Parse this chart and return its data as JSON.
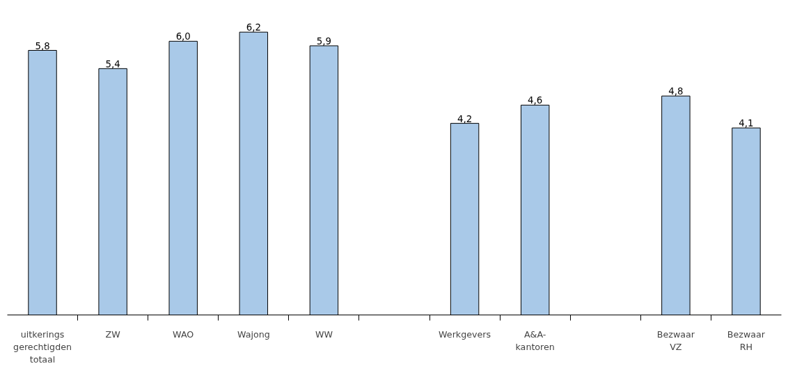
{
  "chart_data": {
    "type": "bar",
    "categories": [
      "uitkerings\ngerechtigden\ntotaal",
      "ZW",
      "WAO",
      "Wajong",
      "WW",
      null,
      "Werkgevers",
      "A&A-\nkantoren",
      null,
      "Bezwaar\nVZ",
      "Bezwaar\nRH"
    ],
    "values": [
      5.8,
      5.4,
      6.0,
      6.2,
      5.9,
      null,
      4.2,
      4.6,
      null,
      4.8,
      4.1
    ],
    "value_labels": [
      "5,8",
      "5,4",
      "6,0",
      "6,2",
      "5,9",
      null,
      "4,2",
      "4,6",
      null,
      "4,8",
      "4,1"
    ],
    "color": "#a9c9e8",
    "tick_labels": "x",
    "grid": false
  }
}
